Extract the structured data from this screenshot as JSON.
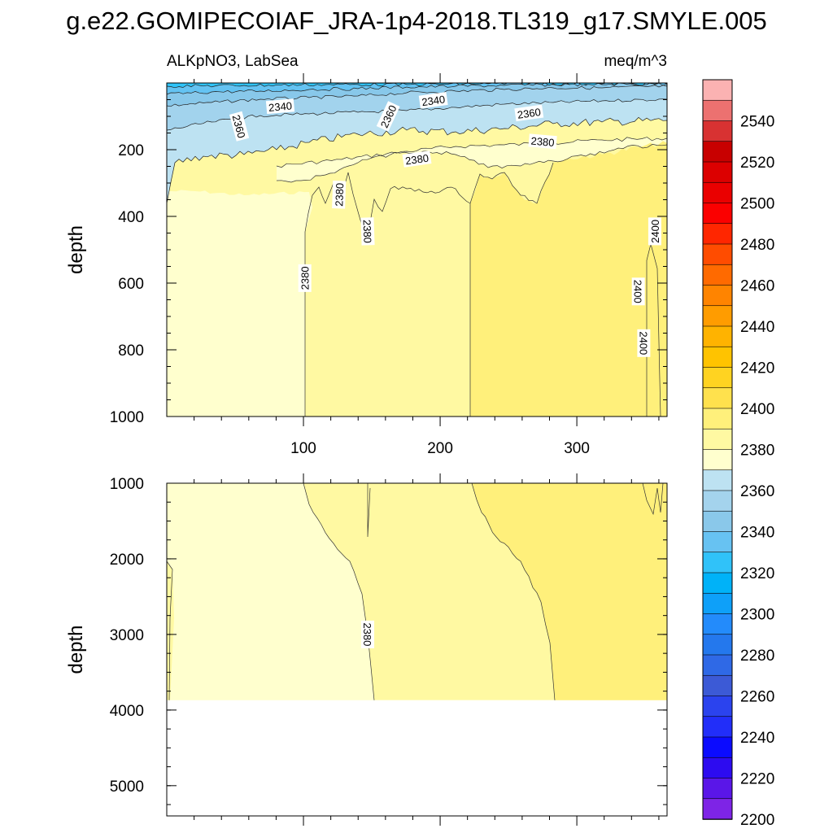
{
  "chart_data": {
    "type": "heatmap",
    "title": "g.e22.GOMIPECOIAF_JRA-1p4-2018.TL319_g17.SMYLE.005",
    "subtitle_left": "ALKpNO3, LabSea",
    "subtitle_right": "meq/m^3",
    "x_range": [
      0,
      366
    ],
    "x_ticks": [
      100,
      200,
      300
    ],
    "x_tick_labels": [
      "100",
      "200",
      "300"
    ],
    "top_panel": {
      "ylabel": "depth",
      "ylim": [
        0,
        1000
      ],
      "y_ticks": [
        200,
        400,
        600,
        800,
        1000
      ],
      "y_tick_labels": [
        "200",
        "400",
        "600",
        "800",
        "1000"
      ],
      "contour_labels": [
        {
          "text": "2340",
          "x": 83,
          "y": 70,
          "angle": -5
        },
        {
          "text": "2360",
          "x": 53,
          "y": 130,
          "angle": 75
        },
        {
          "text": "2360",
          "x": 162,
          "y": 100,
          "angle": -65
        },
        {
          "text": "2340",
          "x": 195,
          "y": 52,
          "angle": -8
        },
        {
          "text": "2360",
          "x": 265,
          "y": 90,
          "angle": -8
        },
        {
          "text": "2380",
          "x": 275,
          "y": 175,
          "angle": 5
        },
        {
          "text": "2380",
          "x": 183,
          "y": 228,
          "angle": -8
        },
        {
          "text": "2380",
          "x": 126,
          "y": 335,
          "angle": -88
        },
        {
          "text": "2380",
          "x": 147,
          "y": 445,
          "angle": 88
        },
        {
          "text": "2380",
          "x": 101,
          "y": 585,
          "angle": -90
        },
        {
          "text": "2400",
          "x": 357,
          "y": 445,
          "angle": -90
        },
        {
          "text": "2400",
          "x": 345,
          "y": 625,
          "angle": 90
        },
        {
          "text": "2400",
          "x": 349,
          "y": 780,
          "angle": 90
        }
      ]
    },
    "bottom_panel": {
      "ylabel": "depth",
      "ylim": [
        1000,
        5400
      ],
      "y_ticks": [
        1000,
        2000,
        3000,
        4000,
        5000
      ],
      "y_tick_labels": [
        "1000",
        "2000",
        "3000",
        "4000",
        "5000"
      ],
      "data_bottom_depth": 3870,
      "contour_labels": [
        {
          "text": "2380",
          "x": 147,
          "y": 3000,
          "angle": 90
        }
      ]
    },
    "colorbar": {
      "labels": [
        "2540",
        "2520",
        "2500",
        "2480",
        "2460",
        "2440",
        "2420",
        "2400",
        "2380",
        "2360",
        "2340",
        "2320",
        "2300",
        "2280",
        "2260",
        "2240",
        "2220",
        "2200"
      ],
      "colors": [
        "#fbb2b2",
        "#ec7170",
        "#d83232",
        "#c80000",
        "#dc0000",
        "#ea0000",
        "#fb0000",
        "#ff2600",
        "#ff4c00",
        "#ff6a00",
        "#ff8400",
        "#ff9c00",
        "#ffb300",
        "#ffc300",
        "#ffd321",
        "#ffe14d",
        "#fff07b",
        "#fff9a2",
        "#ffffce",
        "#bde2f2",
        "#a4d3ed",
        "#8ac8ea",
        "#67c2f2",
        "#30c2f9",
        "#00b2f8",
        "#0ea0f9",
        "#238bfb",
        "#2478ed",
        "#2f69e6",
        "#3c5ad6",
        "#2b43ee",
        "#222ef9",
        "#0b0bff",
        "#2d0bf0",
        "#5a16e8",
        "#7e24e6"
      ]
    },
    "fill_colors": {
      "c2320": "#2ec3f8",
      "c2330": "#64c3f2",
      "c2340": "#88c8ea",
      "c2350": "#a2d3ed",
      "c2360": "#bde2f2",
      "c2370": "#ffffce",
      "c2380": "#fff9a2",
      "c2390": "#fff07b",
      "c2400": "#ffe14d"
    }
  }
}
